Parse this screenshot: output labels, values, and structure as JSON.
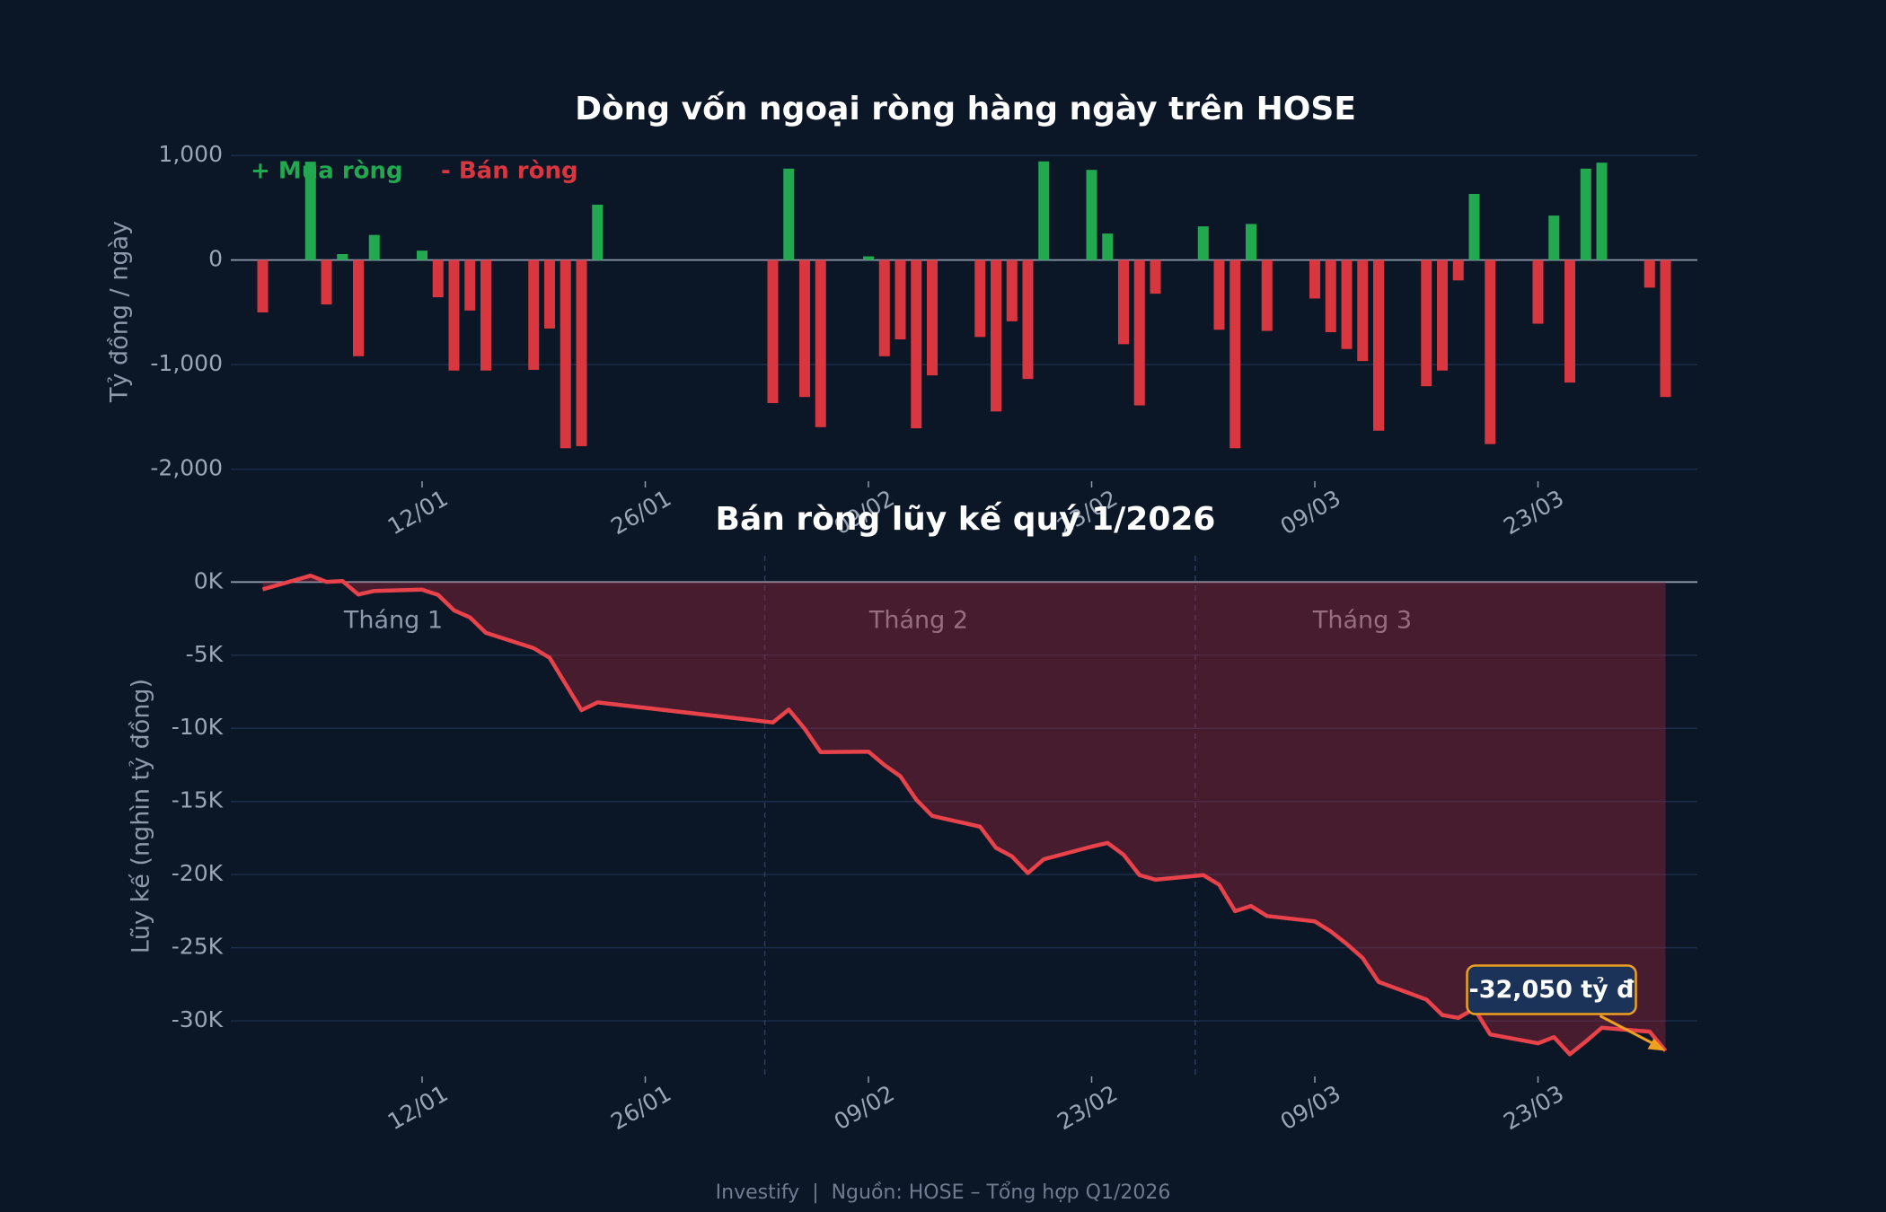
{
  "chart_data": [
    {
      "type": "bar",
      "title": "Dòng vốn ngoại ròng hàng ngày trên HOSE",
      "ylabel": "Tỷ đồng / ngày",
      "x": [
        "02/01",
        "05/01",
        "06/01",
        "07/01",
        "08/01",
        "09/01",
        "12/01",
        "13/01",
        "14/01",
        "15/01",
        "16/01",
        "19/01",
        "20/01",
        "21/01",
        "22/01",
        "23/01",
        "03/02",
        "04/02",
        "05/02",
        "06/02",
        "09/02",
        "10/02",
        "11/02",
        "12/02",
        "13/02",
        "16/02",
        "17/02",
        "18/02",
        "19/02",
        "20/02",
        "23/02",
        "24/02",
        "25/02",
        "26/02",
        "27/02",
        "02/03",
        "03/03",
        "04/03",
        "05/03",
        "06/03",
        "09/03",
        "10/03",
        "11/03",
        "12/03",
        "13/03",
        "16/03",
        "17/03",
        "18/03",
        "19/03",
        "20/03",
        "23/03",
        "24/03",
        "25/03",
        "26/03",
        "27/03",
        "30/03",
        "31/03"
      ],
      "values": [
        -501,
        940,
        -425,
        57,
        -920,
        240,
        90,
        -356,
        -1057,
        -483,
        -1057,
        -1050,
        -655,
        -1800,
        -1780,
        529,
        -1368,
        874,
        -1310,
        -1598,
        35,
        -920,
        -759,
        -1609,
        -1103,
        -736,
        -1448,
        -586,
        -1138,
        943,
        862,
        253,
        -805,
        -1390,
        -322,
        322,
        -667,
        -1800,
        345,
        -678,
        -368,
        -690,
        -851,
        -966,
        -1632,
        -1207,
        -1057,
        -195,
        632,
        -1760,
        -609,
        425,
        -1172,
        874,
        931,
        -264,
        -1310
      ],
      "positive_color": "#22a94f",
      "negative_color": "#d9373f",
      "legend": [
        {
          "name": "+ Mua ròng",
          "color": "#22a94f"
        },
        {
          "name": "- Bán ròng",
          "color": "#d9373f"
        }
      ],
      "xlim": [
        "31/12",
        "02/04"
      ],
      "xticks": [
        "12/01",
        "26/01",
        "09/02",
        "23/02",
        "09/03",
        "23/03"
      ],
      "ylim": [
        -2115,
        1130
      ],
      "yticks": [
        {
          "value": 1000,
          "label": "1,000"
        },
        0,
        {
          "value": -1000,
          "label": "-1,000"
        },
        {
          "value": -2000,
          "label": "-2,000"
        }
      ],
      "grid": true
    },
    {
      "type": "area",
      "title": "Bán ròng lũy kế quý 1/2026",
      "ylabel": "Lũy kế (nghìn tỷ đồng)",
      "x": [
        "02/01",
        "05/01",
        "06/01",
        "07/01",
        "08/01",
        "09/01",
        "12/01",
        "13/01",
        "14/01",
        "15/01",
        "16/01",
        "19/01",
        "20/01",
        "21/01",
        "22/01",
        "23/01",
        "03/02",
        "04/02",
        "05/02",
        "06/02",
        "09/02",
        "10/02",
        "11/02",
        "12/02",
        "13/02",
        "16/02",
        "17/02",
        "18/02",
        "19/02",
        "20/02",
        "23/02",
        "24/02",
        "25/02",
        "26/02",
        "27/02",
        "02/03",
        "03/03",
        "04/03",
        "05/03",
        "06/03",
        "09/03",
        "10/03",
        "11/03",
        "12/03",
        "13/03",
        "16/03",
        "17/03",
        "18/03",
        "19/03",
        "20/03",
        "23/03",
        "24/03",
        "25/03",
        "26/03",
        "27/03",
        "30/03",
        "31/03"
      ],
      "values": [
        -0.501,
        0.439,
        0.014,
        0.071,
        -0.849,
        -0.609,
        -0.519,
        -0.875,
        -1.932,
        -2.415,
        -3.472,
        -4.522,
        -5.177,
        -6.977,
        -8.757,
        -8.228,
        -9.596,
        -8.722,
        -10.032,
        -11.63,
        -11.595,
        -12.515,
        -13.274,
        -14.883,
        -15.986,
        -16.722,
        -18.17,
        -18.756,
        -19.894,
        -18.951,
        -18.089,
        -17.836,
        -18.641,
        -20.031,
        -20.353,
        -20.031,
        -20.698,
        -22.498,
        -22.153,
        -22.831,
        -23.199,
        -23.889,
        -24.74,
        -25.706,
        -27.338,
        -28.545,
        -29.602,
        -29.797,
        -29.165,
        -30.925,
        -31.534,
        -31.109,
        -32.281,
        -31.407,
        -30.476,
        -30.74,
        -32.05
      ],
      "color": "#e8424a",
      "fill_color": "#a8283a",
      "month_labels": [
        "Tháng 1",
        "Tháng 2",
        "Tháng 3"
      ],
      "annotation": {
        "text": "-32,050 tỷ đ",
        "color": "#f0a020"
      },
      "xlim": [
        "31/12",
        "02/04"
      ],
      "xticks": [
        "12/01",
        "26/01",
        "09/02",
        "23/02",
        "09/03",
        "23/03"
      ],
      "ylim": [
        -33.8,
        1.8
      ],
      "yticks": [
        {
          "value": 0,
          "label": "0K"
        },
        {
          "value": -5,
          "label": "-5K"
        },
        {
          "value": -10,
          "label": "-10K"
        },
        {
          "value": -15,
          "label": "-15K"
        },
        {
          "value": -20,
          "label": "-20K"
        },
        {
          "value": -25,
          "label": "-25K"
        },
        {
          "value": -30,
          "label": "-30K"
        }
      ],
      "grid": true
    }
  ],
  "footer": "Investify  |  Nguồn: HOSE – Tổng hợp Q1/2026"
}
